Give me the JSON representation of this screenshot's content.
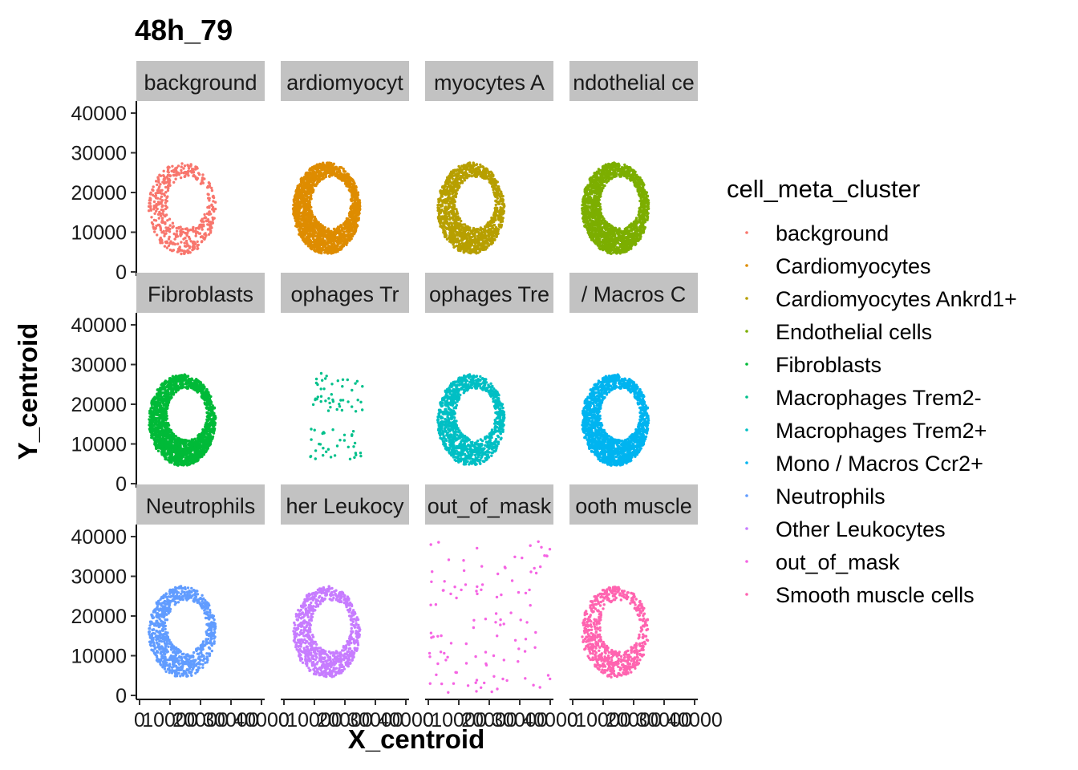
{
  "chart_data": {
    "type": "scatter",
    "title": "48h_79",
    "xlabel": "X_centroid",
    "ylabel": "Y_centroid",
    "xlim": [
      0,
      40000
    ],
    "ylim": [
      0,
      40000
    ],
    "x_ticks": [
      0,
      10000,
      20000,
      30000,
      40000
    ],
    "y_ticks": [
      0,
      10000,
      20000,
      30000,
      40000
    ],
    "facet_layout": {
      "rows": 3,
      "cols": 4
    },
    "grid": false,
    "legend": {
      "title": "cell_meta_cluster",
      "position": "right",
      "entries": [
        {
          "label": "background",
          "color": "#F8766D"
        },
        {
          "label": "Cardiomyocytes",
          "color": "#DE8C00"
        },
        {
          "label": "Cardiomyocytes Ankrd1+",
          "color": "#B79F00"
        },
        {
          "label": "Endothelial cells",
          "color": "#7CAE00"
        },
        {
          "label": "Fibroblasts",
          "color": "#00BA38"
        },
        {
          "label": "Macrophages Trem2-",
          "color": "#00C08B"
        },
        {
          "label": "Macrophages Trem2+",
          "color": "#00BFC4"
        },
        {
          "label": "Mono / Macros Ccr2+",
          "color": "#00B4F0"
        },
        {
          "label": "Neutrophils",
          "color": "#619CFF"
        },
        {
          "label": "Other Leukocytes",
          "color": "#C77CFF"
        },
        {
          "label": "out_of_mask",
          "color": "#F564E3"
        },
        {
          "label": "Smooth muscle cells",
          "color": "#FF64B0"
        }
      ]
    },
    "series": [
      {
        "name": "background",
        "strip": "background",
        "pattern": "ring",
        "density": 0.25,
        "x_range": [
          3000,
          25000
        ],
        "y_range": [
          4500,
          27500
        ]
      },
      {
        "name": "Cardiomyocytes",
        "strip": "ardiomyocyt",
        "pattern": "ring",
        "density": 1.0,
        "x_range": [
          3000,
          25000
        ],
        "y_range": [
          4500,
          27500
        ]
      },
      {
        "name": "Cardiomyocytes Ankrd1+",
        "strip": "myocytes A",
        "pattern": "ring",
        "density": 0.7,
        "x_range": [
          3000,
          25000
        ],
        "y_range": [
          4500,
          27500
        ]
      },
      {
        "name": "Endothelial cells",
        "strip": "ndothelial ce",
        "pattern": "ring",
        "density": 1.0,
        "x_range": [
          3000,
          25000
        ],
        "y_range": [
          4500,
          27500
        ]
      },
      {
        "name": "Fibroblasts",
        "strip": "Fibroblasts",
        "pattern": "ring",
        "density": 1.0,
        "x_range": [
          3000,
          25000
        ],
        "y_range": [
          4500,
          27500
        ]
      },
      {
        "name": "Macrophages Trem2-",
        "strip": "ophages Tr",
        "pattern": "sparse",
        "density": 0.04,
        "x_range": [
          8000,
          26000
        ],
        "y_range": [
          5500,
          28000
        ]
      },
      {
        "name": "Macrophages Trem2+",
        "strip": "ophages Tre",
        "pattern": "ring",
        "density": 0.6,
        "x_range": [
          3000,
          25000
        ],
        "y_range": [
          4500,
          27500
        ]
      },
      {
        "name": "Mono / Macros Ccr2+",
        "strip": "/ Macros C",
        "pattern": "ring",
        "density": 0.9,
        "x_range": [
          3000,
          25000
        ],
        "y_range": [
          4500,
          27500
        ]
      },
      {
        "name": "Neutrophils",
        "strip": "Neutrophils",
        "pattern": "ring",
        "density": 0.45,
        "x_range": [
          3000,
          25000
        ],
        "y_range": [
          4500,
          27500
        ]
      },
      {
        "name": "Other Leukocytes",
        "strip": "her Leukocy",
        "pattern": "ring",
        "density": 0.45,
        "x_range": [
          3000,
          25000
        ],
        "y_range": [
          4500,
          27500
        ]
      },
      {
        "name": "out_of_mask",
        "strip": "out_of_mask",
        "pattern": "scattered",
        "density": 0.02,
        "x_range": [
          0,
          40000
        ],
        "y_range": [
          0,
          39000
        ]
      },
      {
        "name": "Smooth muscle cells",
        "strip": "ooth muscle",
        "pattern": "ring",
        "density": 0.35,
        "x_range": [
          3000,
          25000
        ],
        "y_range": [
          4500,
          27500
        ]
      }
    ]
  }
}
